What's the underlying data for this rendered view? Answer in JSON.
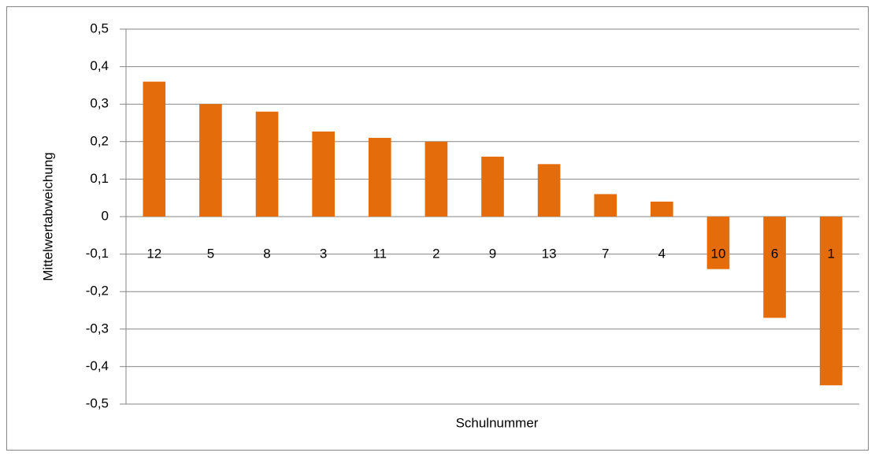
{
  "chart_data": {
    "type": "bar",
    "x_label": "Schulnummer",
    "y_label": "Mittelwertabweichung",
    "categories": [
      "12",
      "5",
      "8",
      "3",
      "11",
      "2",
      "9",
      "13",
      "7",
      "4",
      "10",
      "6",
      "1"
    ],
    "values": [
      0.36,
      0.3,
      0.28,
      0.227,
      0.21,
      0.2,
      0.16,
      0.14,
      0.06,
      0.04,
      -0.14,
      -0.27,
      -0.45
    ],
    "color": "#e46c0a",
    "ylim": [
      -0.5,
      0.5
    ],
    "yticks": [
      {
        "value": -0.5,
        "label": "-0,5"
      },
      {
        "value": -0.4,
        "label": "-0,4"
      },
      {
        "value": -0.3,
        "label": "-0,3"
      },
      {
        "value": -0.2,
        "label": "-0,2"
      },
      {
        "value": -0.1,
        "label": "-0,1"
      },
      0,
      {
        "value": 0.1,
        "label": "0,1"
      },
      {
        "value": 0.2,
        "label": "0,2"
      },
      {
        "value": 0.3,
        "label": "0,3"
      },
      {
        "value": 0.4,
        "label": "0,4"
      },
      {
        "value": 0.5,
        "label": "0,5"
      }
    ],
    "grid": true
  }
}
